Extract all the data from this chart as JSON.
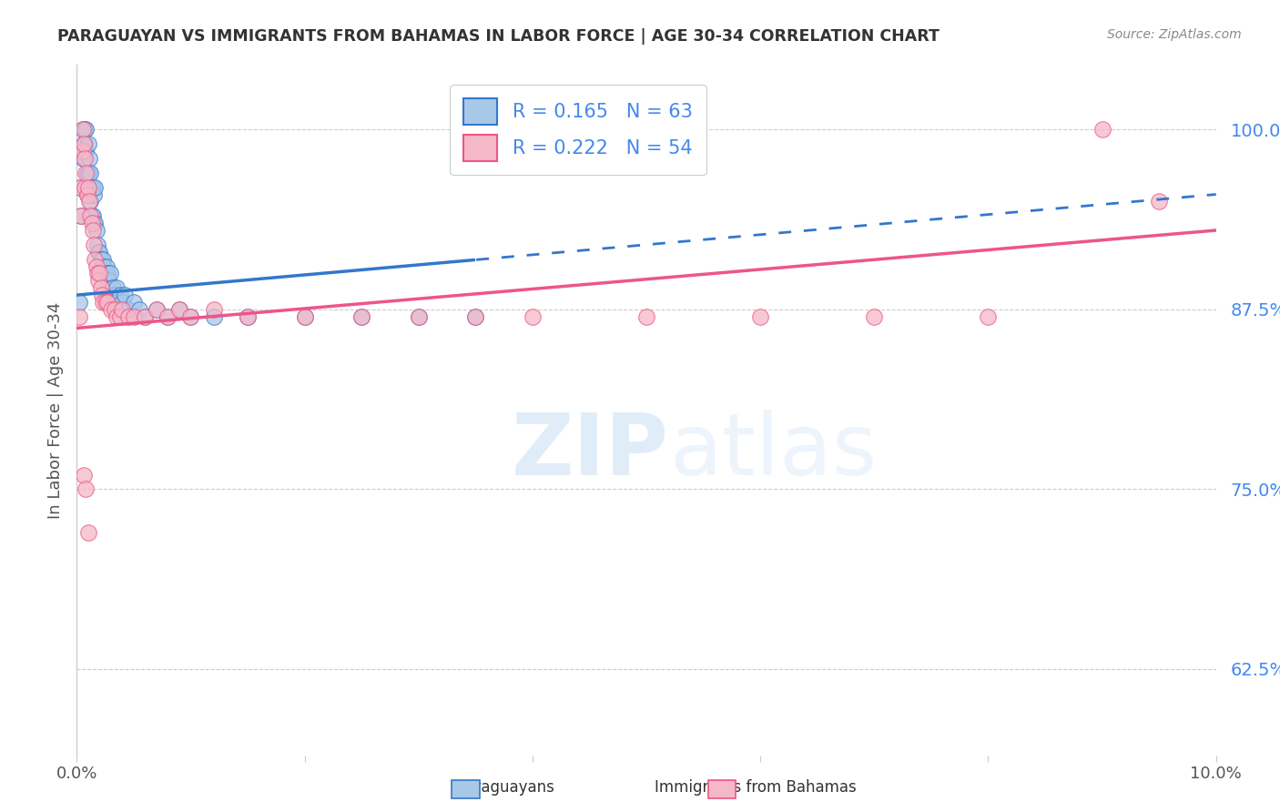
{
  "title": "PARAGUAYAN VS IMMIGRANTS FROM BAHAMAS IN LABOR FORCE | AGE 30-34 CORRELATION CHART",
  "source": "Source: ZipAtlas.com",
  "ylabel": "In Labor Force | Age 30-34",
  "yticks": [
    0.625,
    0.75,
    0.875,
    1.0
  ],
  "ytick_labels": [
    "62.5%",
    "75.0%",
    "87.5%",
    "100.0%"
  ],
  "xlim": [
    0.0,
    0.1
  ],
  "ylim": [
    0.565,
    1.045
  ],
  "blue_color": "#a8c8e8",
  "pink_color": "#f4b8c8",
  "trend_blue": "#3377cc",
  "trend_pink": "#ee5588",
  "legend_R_blue": "0.165",
  "legend_N_blue": "63",
  "legend_R_pink": "0.222",
  "legend_N_pink": "54",
  "blue_scatter_x": [
    0.0002,
    0.0003,
    0.0004,
    0.0005,
    0.0005,
    0.0006,
    0.0006,
    0.0007,
    0.0007,
    0.0008,
    0.0008,
    0.0009,
    0.0009,
    0.001,
    0.001,
    0.0011,
    0.0011,
    0.0012,
    0.0012,
    0.0013,
    0.0013,
    0.0014,
    0.0014,
    0.0015,
    0.0015,
    0.0016,
    0.0016,
    0.0017,
    0.0018,
    0.0019,
    0.002,
    0.0021,
    0.0022,
    0.0023,
    0.0024,
    0.0025,
    0.0026,
    0.0027,
    0.0028,
    0.0029,
    0.003,
    0.0032,
    0.0033,
    0.0034,
    0.0035,
    0.0036,
    0.0038,
    0.004,
    0.0042,
    0.0045,
    0.005,
    0.0055,
    0.006,
    0.007,
    0.008,
    0.009,
    0.01,
    0.012,
    0.015,
    0.02,
    0.025,
    0.03,
    0.035
  ],
  "blue_scatter_y": [
    0.88,
    0.96,
    0.94,
    1.0,
    0.98,
    1.0,
    0.99,
    1.0,
    0.99,
    1.0,
    0.985,
    0.97,
    0.955,
    0.99,
    0.97,
    0.98,
    0.96,
    0.97,
    0.95,
    0.96,
    0.94,
    0.96,
    0.94,
    0.955,
    0.935,
    0.96,
    0.935,
    0.93,
    0.92,
    0.915,
    0.915,
    0.91,
    0.905,
    0.91,
    0.905,
    0.9,
    0.905,
    0.9,
    0.895,
    0.9,
    0.885,
    0.89,
    0.885,
    0.885,
    0.89,
    0.88,
    0.885,
    0.88,
    0.885,
    0.875,
    0.88,
    0.875,
    0.87,
    0.875,
    0.87,
    0.875,
    0.87,
    0.87,
    0.87,
    0.87,
    0.87,
    0.87,
    0.87
  ],
  "pink_scatter_x": [
    0.0002,
    0.0003,
    0.0004,
    0.0005,
    0.0005,
    0.0006,
    0.0007,
    0.0007,
    0.0008,
    0.0009,
    0.001,
    0.0011,
    0.0012,
    0.0013,
    0.0014,
    0.0015,
    0.0016,
    0.0017,
    0.0018,
    0.0019,
    0.002,
    0.0021,
    0.0022,
    0.0023,
    0.0025,
    0.0027,
    0.003,
    0.0033,
    0.0035,
    0.0038,
    0.004,
    0.0045,
    0.005,
    0.006,
    0.007,
    0.008,
    0.009,
    0.01,
    0.012,
    0.015,
    0.02,
    0.025,
    0.03,
    0.035,
    0.04,
    0.05,
    0.06,
    0.07,
    0.08,
    0.09,
    0.095,
    0.0006,
    0.0008,
    0.001
  ],
  "pink_scatter_y": [
    0.87,
    0.96,
    0.94,
    1.0,
    0.985,
    0.99,
    0.98,
    0.96,
    0.97,
    0.955,
    0.96,
    0.95,
    0.94,
    0.935,
    0.93,
    0.92,
    0.91,
    0.905,
    0.9,
    0.895,
    0.9,
    0.89,
    0.885,
    0.88,
    0.88,
    0.88,
    0.875,
    0.875,
    0.87,
    0.87,
    0.875,
    0.87,
    0.87,
    0.87,
    0.875,
    0.87,
    0.875,
    0.87,
    0.875,
    0.87,
    0.87,
    0.87,
    0.87,
    0.87,
    0.87,
    0.87,
    0.87,
    0.87,
    0.87,
    1.0,
    0.95,
    0.76,
    0.75,
    0.72
  ],
  "watermark_zip": "ZIP",
  "watermark_atlas": "atlas",
  "background_color": "#ffffff",
  "grid_color": "#cccccc",
  "axis_color": "#cccccc",
  "label_color": "#4488ee",
  "text_color": "#555555"
}
